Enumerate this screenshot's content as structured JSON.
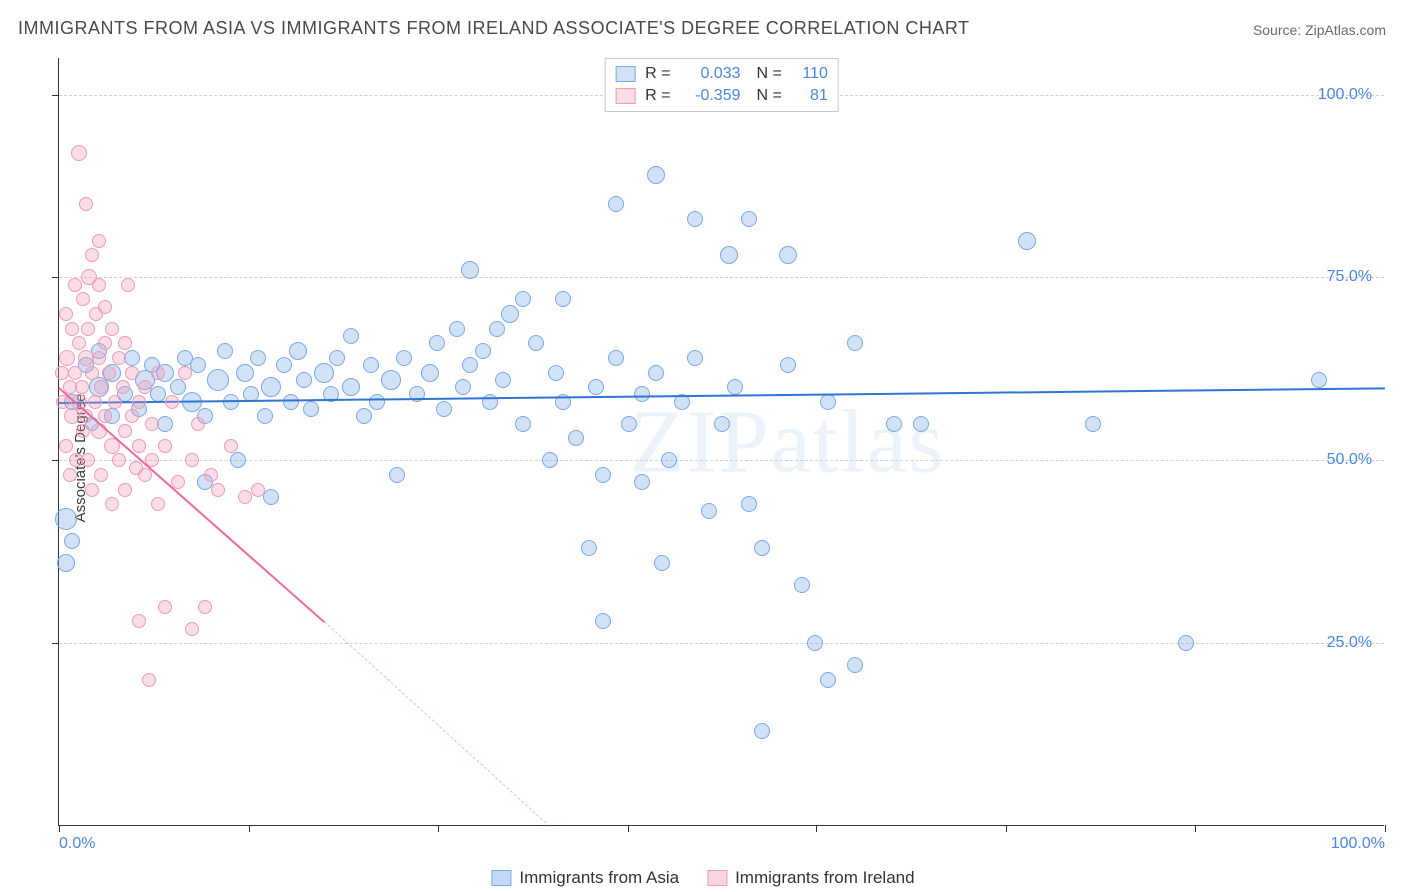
{
  "title": "IMMIGRANTS FROM ASIA VS IMMIGRANTS FROM IRELAND ASSOCIATE'S DEGREE CORRELATION CHART",
  "source": "Source: ZipAtlas.com",
  "watermark": "ZIPatlas",
  "y_axis_label": "Associate's Degree",
  "chart": {
    "type": "scatter",
    "xlim": [
      0,
      100
    ],
    "ylim": [
      0,
      105
    ],
    "x_ticks_labeled": [
      {
        "v": 0,
        "label": "0.0%"
      },
      {
        "v": 100,
        "label": "100.0%"
      }
    ],
    "x_ticks_minor": [
      14.3,
      28.6,
      42.9,
      57.1,
      71.4,
      85.7
    ],
    "y_ticks_labeled": [
      {
        "v": 25,
        "label": "25.0%"
      },
      {
        "v": 50,
        "label": "50.0%"
      },
      {
        "v": 75,
        "label": "75.0%"
      },
      {
        "v": 100,
        "label": "100.0%"
      }
    ],
    "y_grid": [
      25,
      50,
      75,
      100
    ],
    "background_color": "#ffffff",
    "grid_color": "#d0d0d0",
    "axis_color": "#333333",
    "label_color": "#4a86e8",
    "label_fontsize": 16,
    "series": [
      {
        "name": "Immigrants from Asia",
        "fill": "rgba(122,168,230,0.35)",
        "stroke": "#7aa8e6",
        "reg_color": "#2e75d6",
        "reg_solid": {
          "x1": 0,
          "y1": 58,
          "x2": 100,
          "y2": 60
        },
        "reg_dash": null,
        "R": "0.033",
        "N": "110",
        "points": [
          {
            "x": 0.5,
            "y": 42,
            "r": 11
          },
          {
            "x": 0.5,
            "y": 36,
            "r": 9
          },
          {
            "x": 1,
            "y": 39,
            "r": 8
          },
          {
            "x": 1,
            "y": 58,
            "r": 8
          },
          {
            "x": 2,
            "y": 63,
            "r": 8
          },
          {
            "x": 2.5,
            "y": 55,
            "r": 7
          },
          {
            "x": 3,
            "y": 60,
            "r": 10
          },
          {
            "x": 3,
            "y": 65,
            "r": 8
          },
          {
            "x": 4,
            "y": 56,
            "r": 8
          },
          {
            "x": 4,
            "y": 62,
            "r": 9
          },
          {
            "x": 5,
            "y": 59,
            "r": 8
          },
          {
            "x": 5.5,
            "y": 64,
            "r": 8
          },
          {
            "x": 6,
            "y": 57,
            "r": 8
          },
          {
            "x": 6.5,
            "y": 61,
            "r": 10
          },
          {
            "x": 7,
            "y": 63,
            "r": 8
          },
          {
            "x": 7.5,
            "y": 59,
            "r": 8
          },
          {
            "x": 8,
            "y": 55,
            "r": 8
          },
          {
            "x": 8,
            "y": 62,
            "r": 9
          },
          {
            "x": 9,
            "y": 60,
            "r": 8
          },
          {
            "x": 9.5,
            "y": 64,
            "r": 8
          },
          {
            "x": 10,
            "y": 58,
            "r": 10
          },
          {
            "x": 10.5,
            "y": 63,
            "r": 8
          },
          {
            "x": 11,
            "y": 56,
            "r": 8
          },
          {
            "x": 11,
            "y": 47,
            "r": 8
          },
          {
            "x": 12,
            "y": 61,
            "r": 11
          },
          {
            "x": 12.5,
            "y": 65,
            "r": 8
          },
          {
            "x": 13,
            "y": 58,
            "r": 8
          },
          {
            "x": 13.5,
            "y": 50,
            "r": 8
          },
          {
            "x": 14,
            "y": 62,
            "r": 9
          },
          {
            "x": 14.5,
            "y": 59,
            "r": 8
          },
          {
            "x": 15,
            "y": 64,
            "r": 8
          },
          {
            "x": 15.5,
            "y": 56,
            "r": 8
          },
          {
            "x": 16,
            "y": 60,
            "r": 10
          },
          {
            "x": 16,
            "y": 45,
            "r": 8
          },
          {
            "x": 17,
            "y": 63,
            "r": 8
          },
          {
            "x": 17.5,
            "y": 58,
            "r": 8
          },
          {
            "x": 18,
            "y": 65,
            "r": 9
          },
          {
            "x": 18.5,
            "y": 61,
            "r": 8
          },
          {
            "x": 19,
            "y": 57,
            "r": 8
          },
          {
            "x": 20,
            "y": 62,
            "r": 10
          },
          {
            "x": 20.5,
            "y": 59,
            "r": 8
          },
          {
            "x": 21,
            "y": 64,
            "r": 8
          },
          {
            "x": 22,
            "y": 60,
            "r": 9
          },
          {
            "x": 22,
            "y": 67,
            "r": 8
          },
          {
            "x": 23,
            "y": 56,
            "r": 8
          },
          {
            "x": 23.5,
            "y": 63,
            "r": 8
          },
          {
            "x": 24,
            "y": 58,
            "r": 8
          },
          {
            "x": 25,
            "y": 61,
            "r": 10
          },
          {
            "x": 25.5,
            "y": 48,
            "r": 8
          },
          {
            "x": 26,
            "y": 64,
            "r": 8
          },
          {
            "x": 27,
            "y": 59,
            "r": 8
          },
          {
            "x": 28,
            "y": 62,
            "r": 9
          },
          {
            "x": 28.5,
            "y": 66,
            "r": 8
          },
          {
            "x": 29,
            "y": 57,
            "r": 8
          },
          {
            "x": 30,
            "y": 68,
            "r": 8
          },
          {
            "x": 30.5,
            "y": 60,
            "r": 8
          },
          {
            "x": 31,
            "y": 63,
            "r": 8
          },
          {
            "x": 31,
            "y": 76,
            "r": 9
          },
          {
            "x": 32,
            "y": 65,
            "r": 8
          },
          {
            "x": 32.5,
            "y": 58,
            "r": 8
          },
          {
            "x": 33,
            "y": 68,
            "r": 8
          },
          {
            "x": 33.5,
            "y": 61,
            "r": 8
          },
          {
            "x": 34,
            "y": 70,
            "r": 9
          },
          {
            "x": 35,
            "y": 55,
            "r": 8
          },
          {
            "x": 35,
            "y": 72,
            "r": 8
          },
          {
            "x": 36,
            "y": 66,
            "r": 8
          },
          {
            "x": 37,
            "y": 50,
            "r": 8
          },
          {
            "x": 37.5,
            "y": 62,
            "r": 8
          },
          {
            "x": 38,
            "y": 58,
            "r": 8
          },
          {
            "x": 38,
            "y": 72,
            "r": 8
          },
          {
            "x": 39,
            "y": 53,
            "r": 8
          },
          {
            "x": 40,
            "y": 38,
            "r": 8
          },
          {
            "x": 40.5,
            "y": 60,
            "r": 8
          },
          {
            "x": 41,
            "y": 48,
            "r": 8
          },
          {
            "x": 41,
            "y": 28,
            "r": 8
          },
          {
            "x": 42,
            "y": 64,
            "r": 8
          },
          {
            "x": 42,
            "y": 85,
            "r": 8
          },
          {
            "x": 43,
            "y": 55,
            "r": 8
          },
          {
            "x": 44,
            "y": 59,
            "r": 8
          },
          {
            "x": 44,
            "y": 47,
            "r": 8
          },
          {
            "x": 45,
            "y": 62,
            "r": 8
          },
          {
            "x": 45,
            "y": 89,
            "r": 9
          },
          {
            "x": 45.5,
            "y": 36,
            "r": 8
          },
          {
            "x": 46,
            "y": 50,
            "r": 8
          },
          {
            "x": 47,
            "y": 58,
            "r": 8
          },
          {
            "x": 48,
            "y": 83,
            "r": 8
          },
          {
            "x": 48,
            "y": 64,
            "r": 8
          },
          {
            "x": 49,
            "y": 43,
            "r": 8
          },
          {
            "x": 50,
            "y": 55,
            "r": 8
          },
          {
            "x": 50.5,
            "y": 78,
            "r": 9
          },
          {
            "x": 51,
            "y": 60,
            "r": 8
          },
          {
            "x": 52,
            "y": 83,
            "r": 8
          },
          {
            "x": 52,
            "y": 44,
            "r": 8
          },
          {
            "x": 53,
            "y": 38,
            "r": 8
          },
          {
            "x": 53,
            "y": 13,
            "r": 8
          },
          {
            "x": 55,
            "y": 63,
            "r": 8
          },
          {
            "x": 55,
            "y": 78,
            "r": 9
          },
          {
            "x": 56,
            "y": 33,
            "r": 8
          },
          {
            "x": 57,
            "y": 25,
            "r": 8
          },
          {
            "x": 58,
            "y": 58,
            "r": 8
          },
          {
            "x": 58,
            "y": 20,
            "r": 8
          },
          {
            "x": 60,
            "y": 66,
            "r": 8
          },
          {
            "x": 60,
            "y": 22,
            "r": 8
          },
          {
            "x": 63,
            "y": 55,
            "r": 8
          },
          {
            "x": 65,
            "y": 55,
            "r": 8
          },
          {
            "x": 73,
            "y": 80,
            "r": 9
          },
          {
            "x": 78,
            "y": 55,
            "r": 8
          },
          {
            "x": 85,
            "y": 25,
            "r": 8
          },
          {
            "x": 95,
            "y": 61,
            "r": 8
          }
        ]
      },
      {
        "name": "Immigrants from Ireland",
        "fill": "rgba(240,150,180,0.32)",
        "stroke": "#ef9ab6",
        "reg_color": "#ec6a9c",
        "reg_solid": {
          "x1": 0,
          "y1": 60,
          "x2": 20,
          "y2": 28
        },
        "reg_dash": {
          "x1": 20,
          "y1": 28,
          "x2": 37,
          "y2": 0
        },
        "R": "-0.359",
        "N": "81",
        "points": [
          {
            "x": 0.2,
            "y": 62,
            "r": 7
          },
          {
            "x": 0.3,
            "y": 58,
            "r": 7
          },
          {
            "x": 0.5,
            "y": 70,
            "r": 7
          },
          {
            "x": 0.5,
            "y": 52,
            "r": 7
          },
          {
            "x": 0.6,
            "y": 64,
            "r": 8
          },
          {
            "x": 0.8,
            "y": 60,
            "r": 7
          },
          {
            "x": 0.8,
            "y": 48,
            "r": 7
          },
          {
            "x": 1,
            "y": 68,
            "r": 7
          },
          {
            "x": 1,
            "y": 56,
            "r": 8
          },
          {
            "x": 1.2,
            "y": 62,
            "r": 7
          },
          {
            "x": 1.2,
            "y": 74,
            "r": 7
          },
          {
            "x": 1.3,
            "y": 50,
            "r": 7
          },
          {
            "x": 1.5,
            "y": 66,
            "r": 7
          },
          {
            "x": 1.5,
            "y": 58,
            "r": 8
          },
          {
            "x": 1.5,
            "y": 92,
            "r": 8
          },
          {
            "x": 1.7,
            "y": 60,
            "r": 7
          },
          {
            "x": 1.8,
            "y": 54,
            "r": 7
          },
          {
            "x": 1.8,
            "y": 72,
            "r": 7
          },
          {
            "x": 2,
            "y": 64,
            "r": 8
          },
          {
            "x": 2,
            "y": 56,
            "r": 7
          },
          {
            "x": 2,
            "y": 85,
            "r": 7
          },
          {
            "x": 2.2,
            "y": 68,
            "r": 7
          },
          {
            "x": 2.2,
            "y": 50,
            "r": 7
          },
          {
            "x": 2.3,
            "y": 75,
            "r": 8
          },
          {
            "x": 2.5,
            "y": 62,
            "r": 7
          },
          {
            "x": 2.5,
            "y": 46,
            "r": 7
          },
          {
            "x": 2.5,
            "y": 78,
            "r": 7
          },
          {
            "x": 2.7,
            "y": 58,
            "r": 7
          },
          {
            "x": 2.8,
            "y": 70,
            "r": 7
          },
          {
            "x": 3,
            "y": 54,
            "r": 8
          },
          {
            "x": 3,
            "y": 64,
            "r": 7
          },
          {
            "x": 3,
            "y": 74,
            "r": 7
          },
          {
            "x": 3,
            "y": 80,
            "r": 7
          },
          {
            "x": 3.2,
            "y": 60,
            "r": 7
          },
          {
            "x": 3.2,
            "y": 48,
            "r": 7
          },
          {
            "x": 3.5,
            "y": 66,
            "r": 7
          },
          {
            "x": 3.5,
            "y": 56,
            "r": 7
          },
          {
            "x": 3.5,
            "y": 71,
            "r": 7
          },
          {
            "x": 3.8,
            "y": 62,
            "r": 7
          },
          {
            "x": 4,
            "y": 52,
            "r": 8
          },
          {
            "x": 4,
            "y": 68,
            "r": 7
          },
          {
            "x": 4,
            "y": 44,
            "r": 7
          },
          {
            "x": 4.2,
            "y": 58,
            "r": 7
          },
          {
            "x": 4.5,
            "y": 64,
            "r": 7
          },
          {
            "x": 4.5,
            "y": 50,
            "r": 7
          },
          {
            "x": 4.8,
            "y": 60,
            "r": 7
          },
          {
            "x": 5,
            "y": 54,
            "r": 7
          },
          {
            "x": 5,
            "y": 66,
            "r": 7
          },
          {
            "x": 5,
            "y": 46,
            "r": 7
          },
          {
            "x": 5.2,
            "y": 74,
            "r": 7
          },
          {
            "x": 5.5,
            "y": 56,
            "r": 7
          },
          {
            "x": 5.5,
            "y": 62,
            "r": 7
          },
          {
            "x": 5.8,
            "y": 49,
            "r": 7
          },
          {
            "x": 6,
            "y": 58,
            "r": 7
          },
          {
            "x": 6,
            "y": 52,
            "r": 7
          },
          {
            "x": 6,
            "y": 28,
            "r": 7
          },
          {
            "x": 6.5,
            "y": 60,
            "r": 7
          },
          {
            "x": 6.5,
            "y": 48,
            "r": 7
          },
          {
            "x": 6.8,
            "y": 20,
            "r": 7
          },
          {
            "x": 7,
            "y": 55,
            "r": 7
          },
          {
            "x": 7,
            "y": 50,
            "r": 7
          },
          {
            "x": 7.5,
            "y": 62,
            "r": 7
          },
          {
            "x": 7.5,
            "y": 44,
            "r": 7
          },
          {
            "x": 8,
            "y": 30,
            "r": 7
          },
          {
            "x": 8,
            "y": 52,
            "r": 7
          },
          {
            "x": 8.5,
            "y": 58,
            "r": 7
          },
          {
            "x": 9,
            "y": 47,
            "r": 7
          },
          {
            "x": 9.5,
            "y": 62,
            "r": 7
          },
          {
            "x": 10,
            "y": 50,
            "r": 7
          },
          {
            "x": 10,
            "y": 27,
            "r": 7
          },
          {
            "x": 10.5,
            "y": 55,
            "r": 7
          },
          {
            "x": 11,
            "y": 30,
            "r": 7
          },
          {
            "x": 11.5,
            "y": 48,
            "r": 7
          },
          {
            "x": 12,
            "y": 46,
            "r": 7
          },
          {
            "x": 13,
            "y": 52,
            "r": 7
          },
          {
            "x": 14,
            "y": 45,
            "r": 7
          },
          {
            "x": 15,
            "y": 46,
            "r": 7
          }
        ]
      }
    ]
  },
  "legend_bottom": [
    {
      "label": "Immigrants from Asia",
      "fill": "rgba(122,168,230,0.45)",
      "stroke": "#7aa8e6"
    },
    {
      "label": "Immigrants from Ireland",
      "fill": "rgba(240,150,180,0.4)",
      "stroke": "#ef9ab6"
    }
  ]
}
